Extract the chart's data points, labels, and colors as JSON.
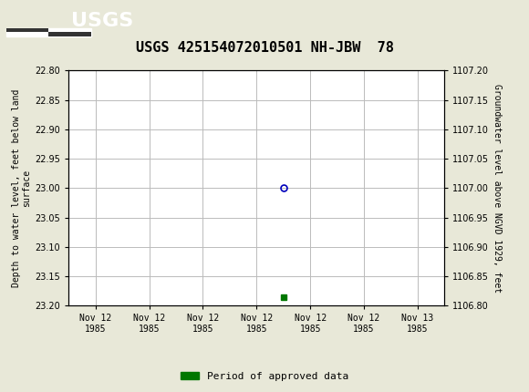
{
  "title": "USGS 425154072010501 NH-JBW  78",
  "title_fontsize": 11,
  "left_ylabel": "Depth to water level, feet below land\nsurface",
  "right_ylabel": "Groundwater level above NGVD 1929, feet",
  "ylim_left_top": 22.8,
  "ylim_left_bottom": 23.2,
  "ylim_right_top": 1107.2,
  "ylim_right_bottom": 1106.8,
  "yticks_left": [
    22.8,
    22.85,
    22.9,
    22.95,
    23.0,
    23.05,
    23.1,
    23.15,
    23.2
  ],
  "yticks_right": [
    1107.2,
    1107.15,
    1107.1,
    1107.05,
    1107.0,
    1106.95,
    1106.9,
    1106.85,
    1106.8
  ],
  "data_point_x": 3.5,
  "data_point_y": 23.0,
  "data_point_color": "#0000bb",
  "green_marker_x": 3.5,
  "green_marker_y": 23.185,
  "green_marker_color": "#007700",
  "header_color": "#005c40",
  "background_color": "#e8e8d8",
  "plot_bg_color": "#ffffff",
  "grid_color": "#bbbbbb",
  "font_family": "monospace",
  "legend_label": "Period of approved data",
  "legend_color": "#007700",
  "xtick_labels": [
    "Nov 12\n1985",
    "Nov 12\n1985",
    "Nov 12\n1985",
    "Nov 12\n1985",
    "Nov 12\n1985",
    "Nov 12\n1985",
    "Nov 13\n1985"
  ],
  "x_positions": [
    0,
    1,
    2,
    3,
    4,
    5,
    6
  ],
  "xlim": [
    -0.5,
    6.5
  ]
}
